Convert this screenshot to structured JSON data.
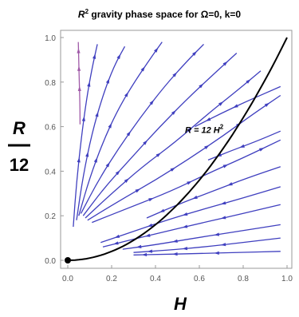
{
  "chart_data": {
    "type": "line",
    "title": {
      "R": "R",
      "sup": "2",
      "rest": " gravity phase space for Ω=0, k=0"
    },
    "xlabel": "H",
    "ylabel": {
      "top": "R",
      "bottom": "12"
    },
    "xlim": [
      0.0,
      1.0
    ],
    "ylim": [
      0.0,
      1.0
    ],
    "xticks": [
      "0.0",
      "0.2",
      "0.4",
      "0.6",
      "0.8",
      "1.0"
    ],
    "yticks": [
      "0.0",
      "0.2",
      "0.4",
      "0.6",
      "0.8",
      "1.0"
    ],
    "grid": false,
    "frame": true,
    "annotation": {
      "text": "R = 12 H",
      "sup": "2",
      "at": [
        0.6,
        0.6
      ]
    },
    "colors": {
      "stream": "#3f3fbf",
      "stream_high": "#a05aa8",
      "curve": "#000000",
      "frame": "#999999"
    },
    "series": [
      {
        "name": "R = 12 H²",
        "style": "curve",
        "x": [
          0.0,
          0.1,
          0.2,
          0.3,
          0.4,
          0.5,
          0.6,
          0.7,
          0.8,
          0.9,
          1.0
        ],
        "y": [
          0.0,
          0.01,
          0.04,
          0.09,
          0.16,
          0.25,
          0.36,
          0.49,
          0.64,
          0.81,
          1.0
        ]
      },
      {
        "style": "stream",
        "x": [
          0.056,
          0.055,
          0.052,
          0.05,
          0.048
        ],
        "y": [
          0.61,
          0.72,
          0.82,
          0.9,
          0.98
        ],
        "dir": "up"
      },
      {
        "style": "stream",
        "x": [
          0.025,
          0.04,
          0.062,
          0.085,
          0.11,
          0.135
        ],
        "y": [
          0.15,
          0.35,
          0.55,
          0.72,
          0.86,
          0.97
        ],
        "dir": "up"
      },
      {
        "style": "stream",
        "x": [
          0.04,
          0.07,
          0.11,
          0.16,
          0.21,
          0.26
        ],
        "y": [
          0.18,
          0.38,
          0.57,
          0.74,
          0.87,
          0.96
        ],
        "dir": "up"
      },
      {
        "style": "stream",
        "x": [
          0.05,
          0.1,
          0.16,
          0.23,
          0.31,
          0.38,
          0.43
        ],
        "y": [
          0.2,
          0.37,
          0.53,
          0.68,
          0.81,
          0.91,
          0.98
        ],
        "dir": "up"
      },
      {
        "style": "stream",
        "x": [
          0.06,
          0.14,
          0.23,
          0.33,
          0.44,
          0.54,
          0.62
        ],
        "y": [
          0.21,
          0.36,
          0.5,
          0.64,
          0.78,
          0.89,
          0.97
        ],
        "dir": "up"
      },
      {
        "style": "stream",
        "x": [
          0.07,
          0.17,
          0.29,
          0.42,
          0.55,
          0.67,
          0.77
        ],
        "y": [
          0.2,
          0.33,
          0.46,
          0.6,
          0.73,
          0.84,
          0.93
        ],
        "dir": "up"
      },
      {
        "style": "stream",
        "x": [
          0.08,
          0.2,
          0.34,
          0.49,
          0.63,
          0.77,
          0.88
        ],
        "y": [
          0.19,
          0.3,
          0.42,
          0.53,
          0.65,
          0.76,
          0.85
        ],
        "dir": "up"
      },
      {
        "style": "stream",
        "x": [
          0.09,
          0.24,
          0.4,
          0.56,
          0.71,
          0.85,
          0.97
        ],
        "y": [
          0.18,
          0.27,
          0.36,
          0.46,
          0.56,
          0.66,
          0.74
        ],
        "dir": "up"
      },
      {
        "style": "stream",
        "x": [
          0.11,
          0.29,
          0.47,
          0.64,
          0.8,
          0.97
        ],
        "y": [
          0.17,
          0.24,
          0.31,
          0.39,
          0.46,
          0.54
        ],
        "dir": "up"
      },
      {
        "style": "stream",
        "x": [
          0.97,
          0.83,
          0.7,
          0.58
        ],
        "y": [
          0.78,
          0.72,
          0.66,
          0.6
        ],
        "dir": "down"
      },
      {
        "style": "stream",
        "x": [
          0.97,
          0.85,
          0.74,
          0.64
        ],
        "y": [
          0.58,
          0.53,
          0.49,
          0.45
        ],
        "dir": "down"
      },
      {
        "style": "stream",
        "x": [
          0.97,
          0.82,
          0.66,
          0.5,
          0.36
        ],
        "y": [
          0.42,
          0.37,
          0.31,
          0.25,
          0.19
        ],
        "dir": "down"
      },
      {
        "style": "stream",
        "x": [
          0.97,
          0.8,
          0.62,
          0.45,
          0.3,
          0.15
        ],
        "y": [
          0.33,
          0.28,
          0.23,
          0.18,
          0.13,
          0.08
        ],
        "dir": "down"
      },
      {
        "style": "stream",
        "x": [
          0.97,
          0.8,
          0.62,
          0.45,
          0.28,
          0.16
        ],
        "y": [
          0.25,
          0.21,
          0.17,
          0.13,
          0.09,
          0.06
        ],
        "dir": "down"
      },
      {
        "style": "stream",
        "x": [
          0.97,
          0.78,
          0.58,
          0.4,
          0.25
        ],
        "y": [
          0.16,
          0.13,
          0.1,
          0.07,
          0.05
        ],
        "dir": "down"
      },
      {
        "style": "stream",
        "x": [
          0.97,
          0.8,
          0.62,
          0.45,
          0.3
        ],
        "y": [
          0.1,
          0.08,
          0.06,
          0.045,
          0.035
        ],
        "dir": "down"
      },
      {
        "style": "stream",
        "x": [
          0.97,
          0.78,
          0.58,
          0.4,
          0.3
        ],
        "y": [
          0.04,
          0.035,
          0.03,
          0.026,
          0.024
        ],
        "dir": "down"
      }
    ],
    "points": [
      {
        "x": 0.0,
        "y": 0.0
      }
    ]
  }
}
